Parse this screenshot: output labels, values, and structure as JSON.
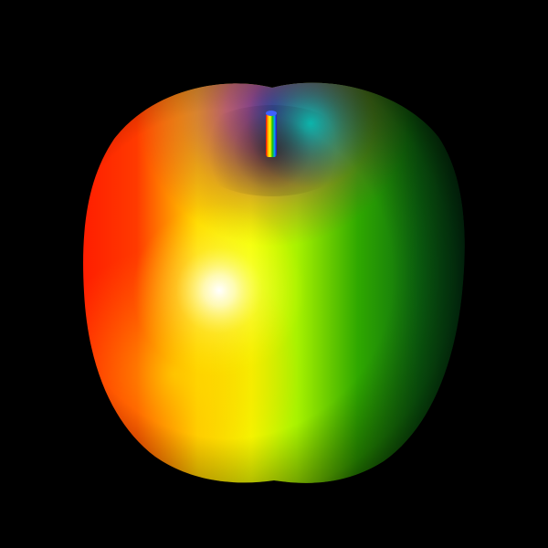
{
  "scene": {
    "subject": "apple",
    "background_color": "#000000",
    "palette": {
      "red": "#ff2200",
      "orange": "#ff7a00",
      "yellow": "#ffff00",
      "lime": "#9ef000",
      "green": "#1e9600",
      "dark_green": "#004a1a",
      "teal": "#00b8a8",
      "blue": "#0055ff",
      "purple": "#8a00c8",
      "magenta": "#a0007a",
      "highlight": "#ffffff"
    },
    "shading": "rainbow-hue-gradient",
    "stem_color": "rainbow-striped"
  }
}
